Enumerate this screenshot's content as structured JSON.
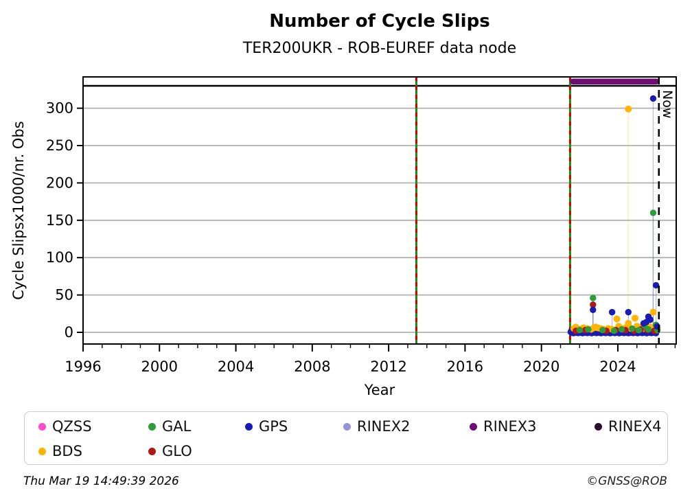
{
  "header": {
    "title": "Number of Cycle Slips",
    "subtitle": "TER200UKR - ROB-EUREF data node"
  },
  "chart_data": {
    "type": "scatter",
    "title": "Number of Cycle Slips",
    "subtitle": "TER200UKR - ROB-EUREF data node",
    "xlabel": "Year",
    "ylabel": "Cycle Slipsx1000/nr. Obs",
    "xlim": [
      1996,
      2027.05
    ],
    "ylim": [
      -15.6,
      330
    ],
    "xticks": [
      1996,
      2000,
      2004,
      2008,
      2012,
      2016,
      2020,
      2024
    ],
    "x_minor_step": 1,
    "yticks": [
      0,
      50,
      100,
      150,
      200,
      250,
      300
    ],
    "grid": "horizontal-only",
    "grid_color": "#b0b0b0",
    "events": {
      "description": "vertical green lines with red dash overlay",
      "solid_color": "#128c12",
      "dash_color": "#d40000",
      "years": [
        2013.45,
        2021.5
      ]
    },
    "now": {
      "year": 2026.15,
      "label": "Now"
    },
    "availability_bar": {
      "name": "RINEX3",
      "start": 2021.5,
      "end": 2026.15,
      "color": "#6f0d72"
    },
    "series": [
      {
        "name": "BDS",
        "color": "#ffb302",
        "points": [
          [
            2021.7,
            5
          ],
          [
            2021.8,
            7
          ],
          [
            2021.9,
            5
          ],
          [
            2022.05,
            4
          ],
          [
            2022.2,
            6
          ],
          [
            2022.4,
            5
          ],
          [
            2022.6,
            4
          ],
          [
            2022.75,
            6
          ],
          [
            2022.85,
            7
          ],
          [
            2022.95,
            6
          ],
          [
            2023.1,
            5
          ],
          [
            2023.25,
            4
          ],
          [
            2023.5,
            5
          ],
          [
            2023.7,
            4
          ],
          [
            2023.95,
            18
          ],
          [
            2024.05,
            8
          ],
          [
            2024.2,
            5
          ],
          [
            2024.4,
            6
          ],
          [
            2024.55,
            299
          ],
          [
            2024.55,
            12
          ],
          [
            2024.7,
            5
          ],
          [
            2024.9,
            19
          ],
          [
            2025.0,
            8
          ],
          [
            2025.1,
            7
          ],
          [
            2025.2,
            6
          ],
          [
            2025.35,
            5
          ],
          [
            2025.55,
            6
          ],
          [
            2025.7,
            7
          ],
          [
            2025.85,
            27
          ],
          [
            2025.95,
            8
          ],
          [
            2026.0,
            6
          ],
          [
            2026.07,
            5
          ]
        ]
      },
      {
        "name": "GLO",
        "color": "#b21818",
        "points": [
          [
            2021.8,
            2
          ],
          [
            2022.3,
            3
          ],
          [
            2022.7,
            37
          ],
          [
            2023.4,
            2
          ],
          [
            2023.9,
            3
          ],
          [
            2024.4,
            3
          ],
          [
            2024.85,
            2
          ],
          [
            2025.2,
            4
          ],
          [
            2025.55,
            3
          ],
          [
            2025.9,
            2
          ],
          [
            2026.03,
            2
          ]
        ]
      },
      {
        "name": "GAL",
        "color": "#2e9b3d",
        "points": [
          [
            2022.0,
            3
          ],
          [
            2022.45,
            4
          ],
          [
            2022.7,
            46
          ],
          [
            2023.2,
            3
          ],
          [
            2023.8,
            2
          ],
          [
            2024.2,
            4
          ],
          [
            2024.75,
            5
          ],
          [
            2025.1,
            3
          ],
          [
            2025.4,
            9
          ],
          [
            2025.6,
            4
          ],
          [
            2025.85,
            160
          ],
          [
            2026.0,
            10
          ],
          [
            2026.07,
            3
          ]
        ]
      },
      {
        "name": "GPS",
        "color": "#1a1ab4",
        "points": [
          [
            2022.7,
            30
          ],
          [
            2023.7,
            27
          ],
          [
            2024.55,
            27
          ],
          [
            2025.35,
            12
          ],
          [
            2025.5,
            14
          ],
          [
            2025.6,
            21
          ],
          [
            2025.7,
            17
          ],
          [
            2025.85,
            313
          ],
          [
            2026.0,
            63
          ],
          [
            2026.05,
            8
          ]
        ]
      }
    ],
    "gps_dense_band": {
      "name": "GPS",
      "color": "#1a1ab4",
      "start": 2021.53,
      "end": 2026.08,
      "step": 0.03,
      "value_cycle": [
        0.5,
        1.8,
        -0.6,
        2.2,
        0.9,
        -1.2,
        1.4,
        2.6,
        0.1,
        -0.4,
        1.9,
        0.7,
        2.4,
        -0.9,
        1.1,
        0.3
      ]
    }
  },
  "legend": {
    "items": [
      {
        "label": "QZSS",
        "color": "#ff49cc"
      },
      {
        "label": "GAL",
        "color": "#2e9b3d"
      },
      {
        "label": "GPS",
        "color": "#1a1ab4"
      },
      {
        "label": "RINEX2",
        "color": "#9794d9"
      },
      {
        "label": "RINEX3",
        "color": "#6f0d72"
      },
      {
        "label": "RINEX4",
        "color": "#2c0e31"
      },
      {
        "label": "BDS",
        "color": "#ffb302"
      },
      {
        "label": "GLO",
        "color": "#b21818"
      }
    ]
  },
  "footer": {
    "timestamp": "Thu Mar 19 14:49:39 2026",
    "copyright": "©GNSS@ROB"
  }
}
